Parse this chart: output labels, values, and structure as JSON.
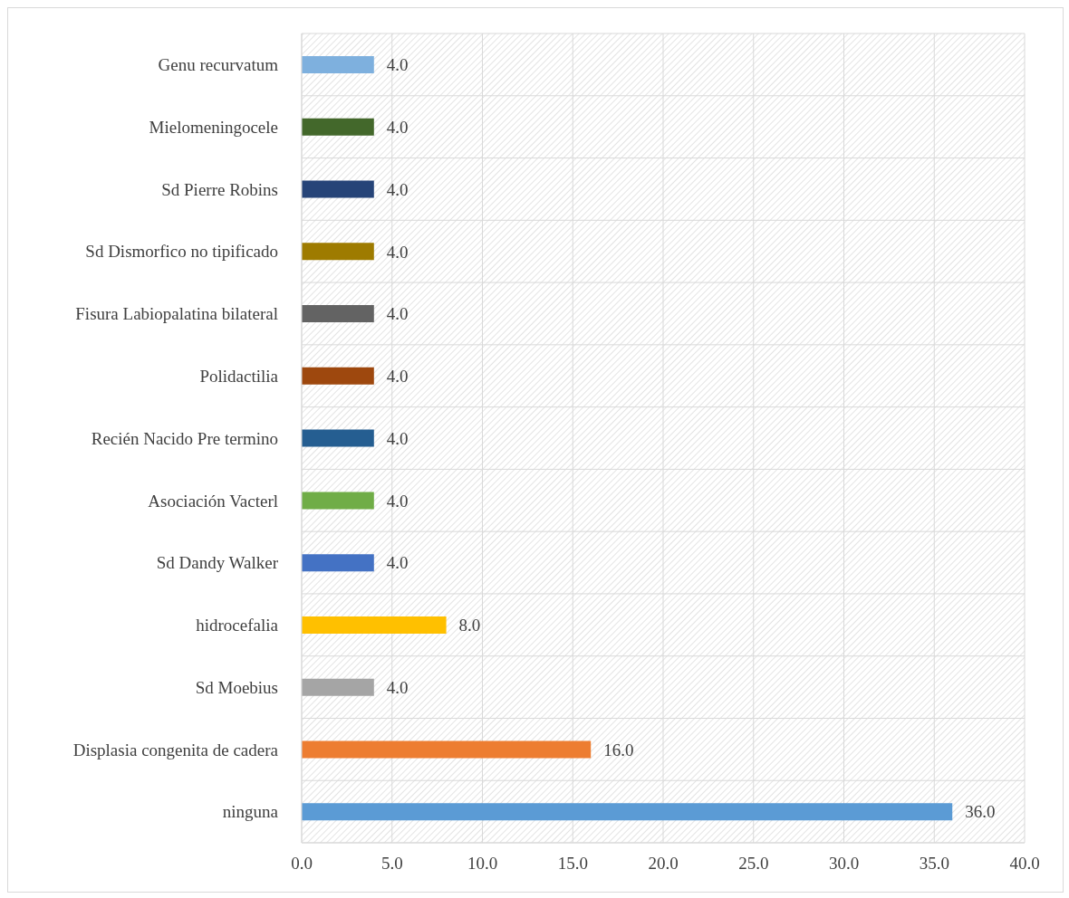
{
  "chart_data": {
    "type": "bar",
    "orientation": "horizontal",
    "categories": [
      "Genu recurvatum",
      "Mielomeningocele",
      "Sd Pierre Robins",
      "Sd Dismorfico no tipificado",
      "Fisura Labiopalatina bilateral",
      "Polidactilia",
      "Recién Nacido Pre termino",
      "Asociación Vacterl",
      "Sd Dandy Walker",
      "hidrocefalia",
      "Sd Moebius",
      "Displasia congenita de cadera",
      "ninguna"
    ],
    "values": [
      4,
      4,
      4,
      4,
      4,
      4,
      4,
      4,
      4,
      8,
      4,
      16,
      36
    ],
    "value_labels": [
      "4.0",
      "4.0",
      "4.0",
      "4.0",
      "4.0",
      "4.0",
      "4.0",
      "4.0",
      "4.0",
      "8.0",
      "4.0",
      "16.0",
      "36.0"
    ],
    "colors": [
      "#7eb0de",
      "#43682b",
      "#264478",
      "#9e7b00",
      "#636363",
      "#9e480e",
      "#255e91",
      "#70ad47",
      "#4472c4",
      "#ffc000",
      "#a5a5a5",
      "#ed7d31",
      "#5b9bd5"
    ],
    "xlim": [
      0,
      40
    ],
    "xticks": [
      {
        "value": 0,
        "label": "0.0"
      },
      {
        "value": 5,
        "label": "5.0"
      },
      {
        "value": 10,
        "label": "10.0"
      },
      {
        "value": 15,
        "label": "15.0"
      },
      {
        "value": 20,
        "label": "20.0"
      },
      {
        "value": 25,
        "label": "25.0"
      },
      {
        "value": 30,
        "label": "30.0"
      },
      {
        "value": 35,
        "label": "35.0"
      },
      {
        "value": 40,
        "label": "40.0"
      }
    ],
    "grid": true
  }
}
